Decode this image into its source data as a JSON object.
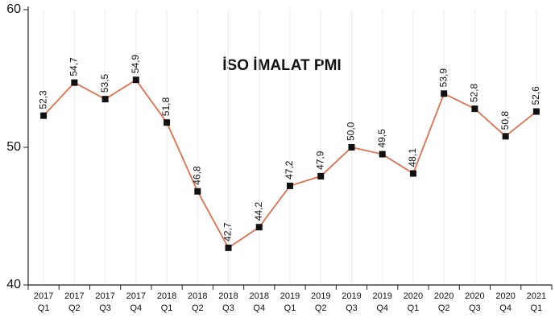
{
  "chart_data": {
    "type": "line",
    "title": "İSO İMALAT PMI",
    "categories": [
      [
        "2017",
        "Q1"
      ],
      [
        "2017",
        "Q2"
      ],
      [
        "2017",
        "Q3"
      ],
      [
        "2017",
        "Q4"
      ],
      [
        "2018",
        "Q1"
      ],
      [
        "2018",
        "Q2"
      ],
      [
        "2018",
        "Q3"
      ],
      [
        "2018",
        "Q4"
      ],
      [
        "2019",
        "Q1"
      ],
      [
        "2019",
        "Q2"
      ],
      [
        "2019",
        "Q3"
      ],
      [
        "2019",
        "Q4"
      ],
      [
        "2020",
        "Q1"
      ],
      [
        "2020",
        "Q2"
      ],
      [
        "2020",
        "Q3"
      ],
      [
        "2020",
        "Q4"
      ],
      [
        "2021",
        "Q1"
      ]
    ],
    "series": [
      {
        "color": "#e0704e",
        "values": [
          52.3,
          54.7,
          53.5,
          54.9,
          51.8,
          46.8,
          42.7,
          44.2,
          47.2,
          47.9,
          50.0,
          49.5,
          48.1,
          53.9,
          52.8,
          50.8,
          52.6
        ],
        "value_labels": [
          "52,3",
          "54,7",
          "53,5",
          "54,9",
          "51,8",
          "46,8",
          "42,7",
          "44,2",
          "47,2",
          "47,9",
          "50,0",
          "49,5",
          "48,1",
          "53,9",
          "52,8",
          "50,8",
          "52,6"
        ]
      }
    ],
    "ylim": [
      40,
      60
    ],
    "yticks": [
      40,
      50,
      60
    ],
    "grid": true
  }
}
